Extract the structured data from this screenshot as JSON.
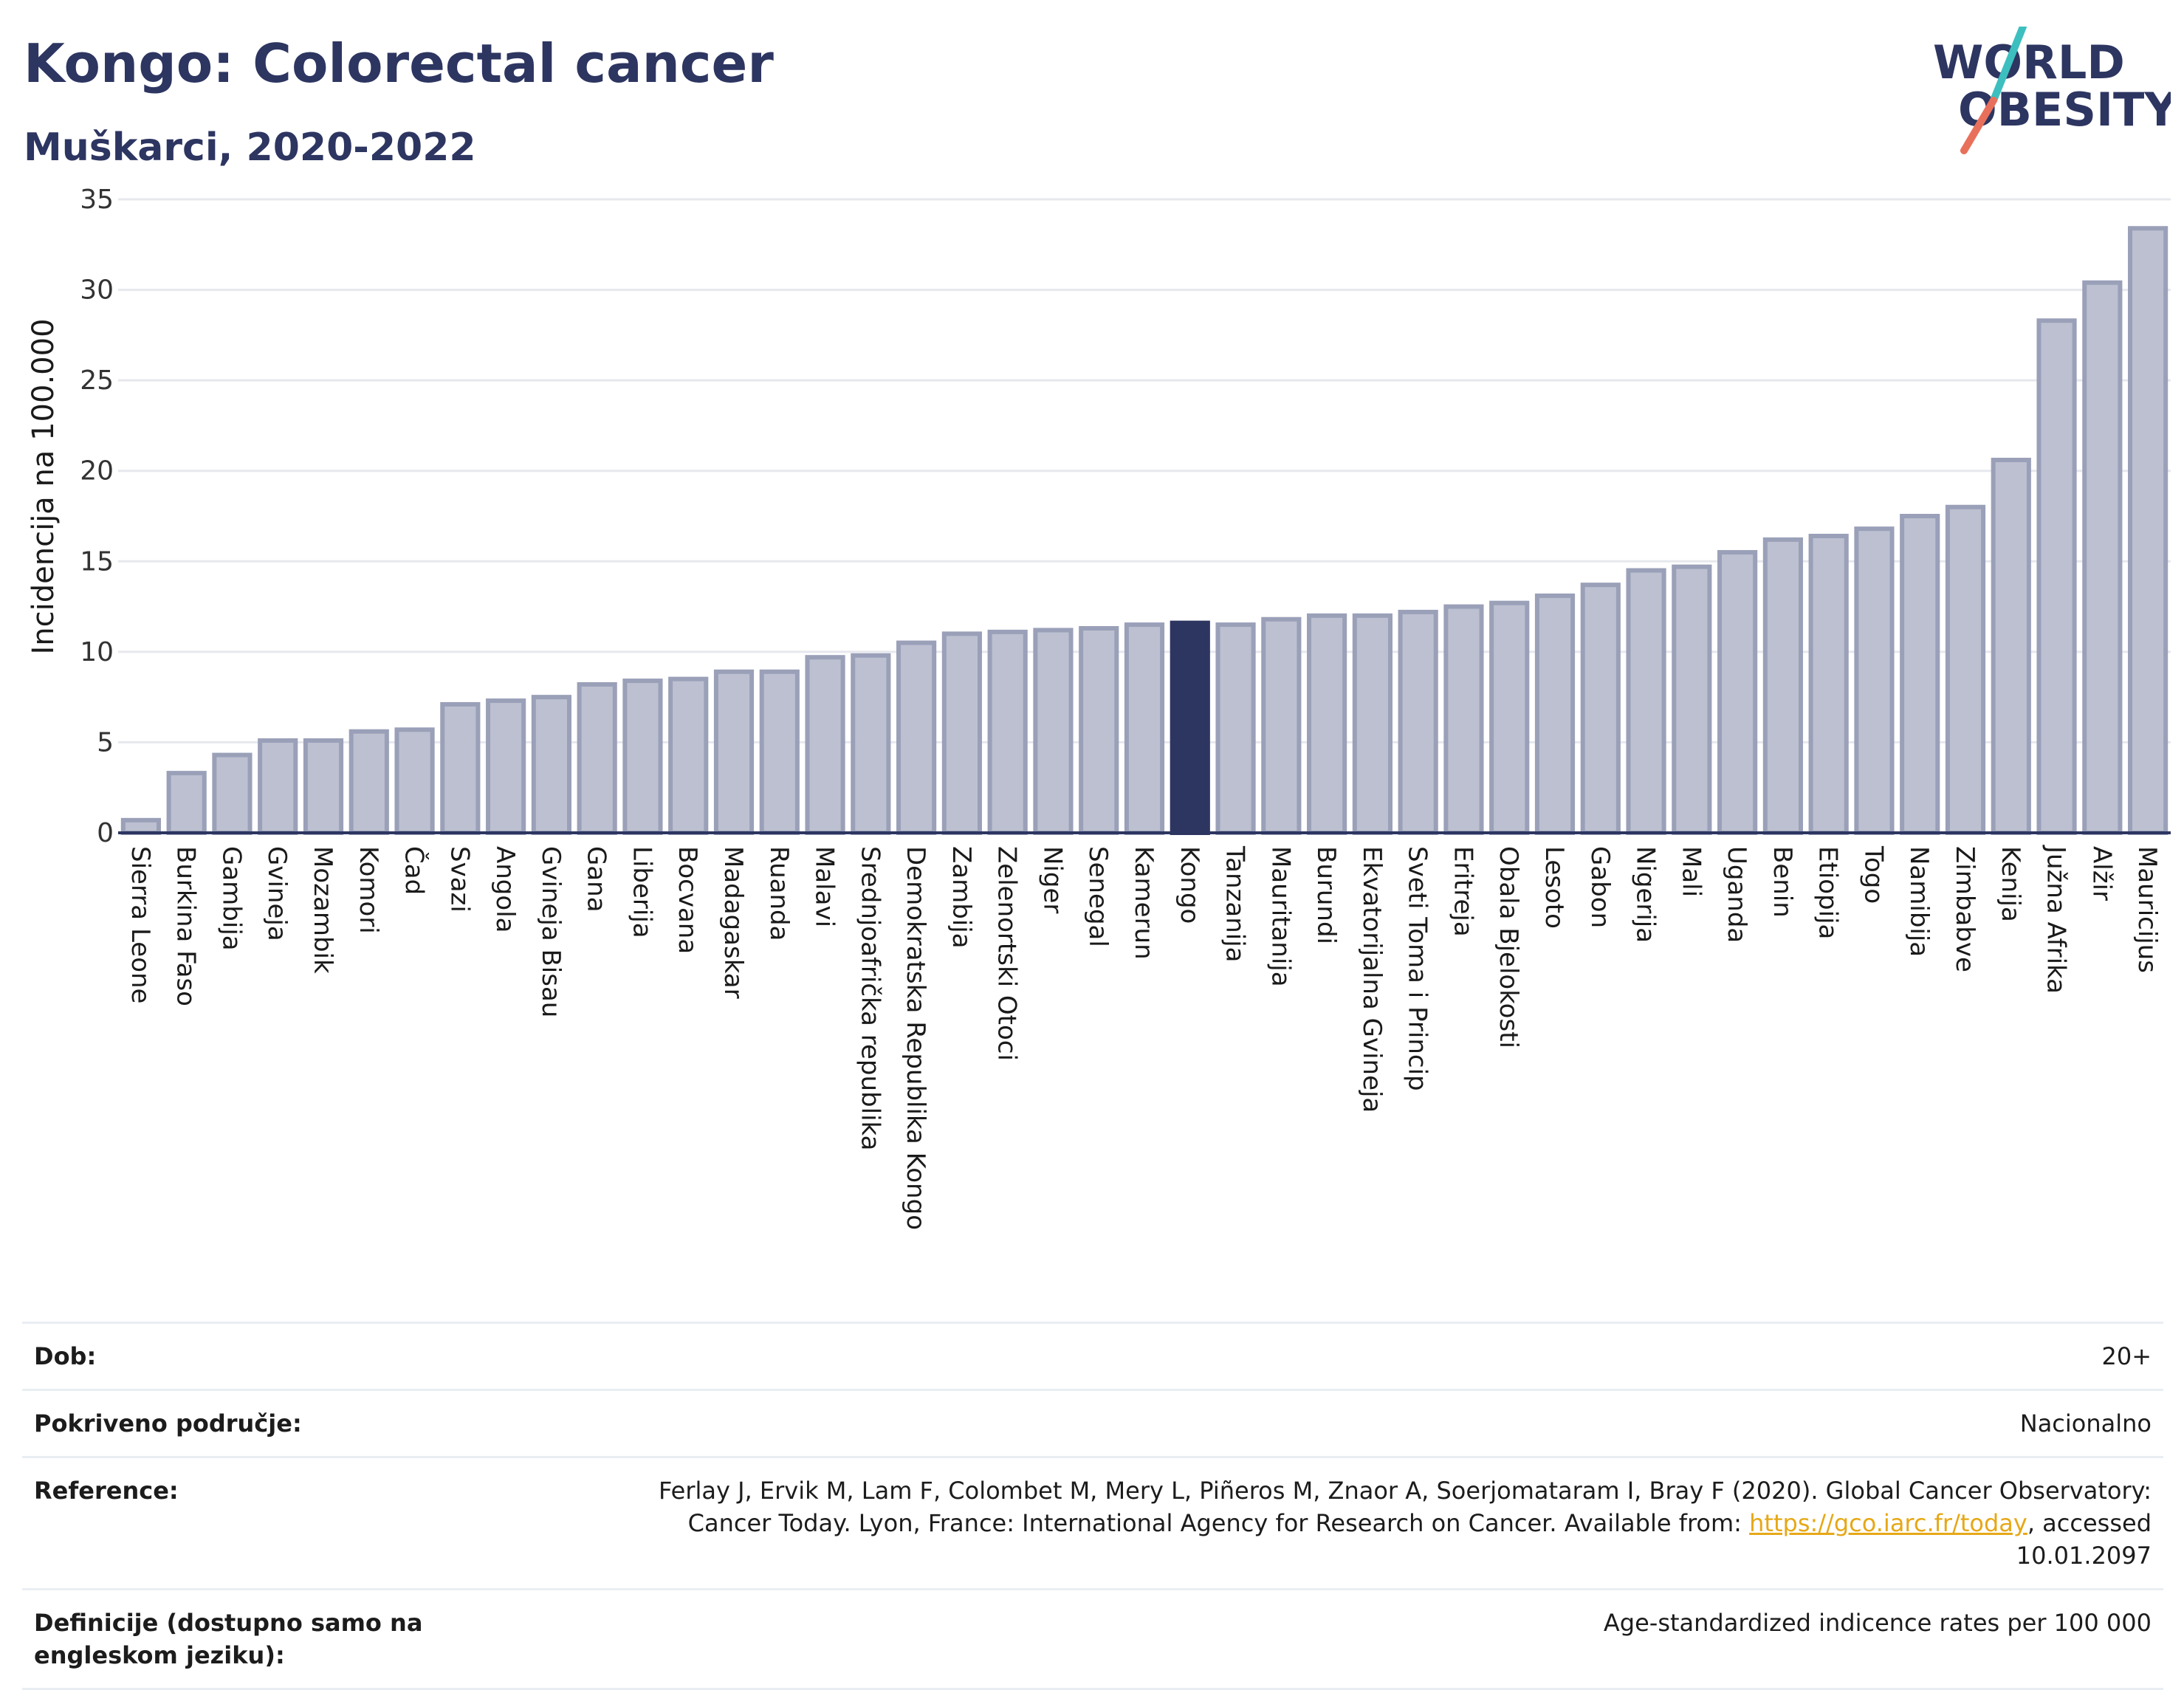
{
  "header": {
    "title": "Kongo: Colorectal cancer",
    "subtitle": "Muškarci, 2020-2022"
  },
  "logo": {
    "line1": "WORLD",
    "line2": "OBESITY",
    "icon": "world-obesity-logo"
  },
  "colors": {
    "bar": "#bcc0d0",
    "bar_stroke": "#9aa0b8",
    "highlight": "#2d3561",
    "title": "#2d3561",
    "link": "#e6a817"
  },
  "chart_data": {
    "type": "bar",
    "title": "Kongo: Colorectal cancer",
    "subtitle": "Muškarci, 2020-2022",
    "xlabel": "",
    "ylabel": "Incidencija na 100.000",
    "ylim": [
      0,
      35
    ],
    "yticks": [
      0,
      5,
      10,
      15,
      20,
      25,
      30,
      35
    ],
    "grid": true,
    "highlight": "Kongo",
    "categories": [
      "Sierra Leone",
      "Burkina Faso",
      "Gambija",
      "Gvineja",
      "Mozambik",
      "Komori",
      "Čad",
      "Svazi",
      "Angola",
      "Gvineja Bisau",
      "Gana",
      "Liberija",
      "Bocvana",
      "Madagaskar",
      "Ruanda",
      "Malavi",
      "Srednjoafrička republika",
      "Demokratska Republika Kongo",
      "Zambija",
      "Zelenortski Otoci",
      "Niger",
      "Senegal",
      "Kamerun",
      "Kongo",
      "Tanzanija",
      "Mauritanija",
      "Burundi",
      "Ekvatorijalna Gvineja",
      "Sveti Toma i Princip",
      "Eritreja",
      "Obala Bjelokosti",
      "Lesoto",
      "Gabon",
      "Nigerija",
      "Mali",
      "Uganda",
      "Benin",
      "Etiopija",
      "Togo",
      "Namibija",
      "Zimbabve",
      "Kenija",
      "Južna Afrika",
      "Alžir",
      "Mauricijus"
    ],
    "values": [
      0.7,
      3.3,
      4.3,
      5.1,
      5.1,
      5.6,
      5.7,
      7.1,
      7.3,
      7.5,
      8.2,
      8.4,
      8.5,
      8.9,
      8.9,
      9.7,
      9.8,
      10.5,
      11.0,
      11.1,
      11.2,
      11.3,
      11.5,
      11.6,
      11.5,
      11.8,
      12.0,
      12.0,
      12.2,
      12.5,
      12.7,
      13.1,
      13.7,
      14.5,
      14.7,
      15.5,
      16.2,
      16.4,
      16.8,
      17.5,
      18.0,
      20.6,
      28.3,
      30.4,
      33.4
    ]
  },
  "info": {
    "rows": [
      {
        "label": "Dob:",
        "value": "20+"
      },
      {
        "label": "Pokriveno područje:",
        "value": "Nacionalno"
      },
      {
        "label": "Reference:",
        "value_before": "Ferlay J, Ervik M, Lam F, Colombet M, Mery L, Piñeros M, Znaor A, Soerjomataram I, Bray F (2020). Global Cancer Observatory: Cancer Today. Lyon, France: International Agency for Research on Cancer. Available from: ",
        "link": "https://gco.iarc.fr/today",
        "value_after": ", accessed 10.01.2097"
      },
      {
        "label": "Definicije (dostupno samo na engleskom jeziku):",
        "value": "Age-standardized indicence rates per 100 000"
      }
    ]
  }
}
